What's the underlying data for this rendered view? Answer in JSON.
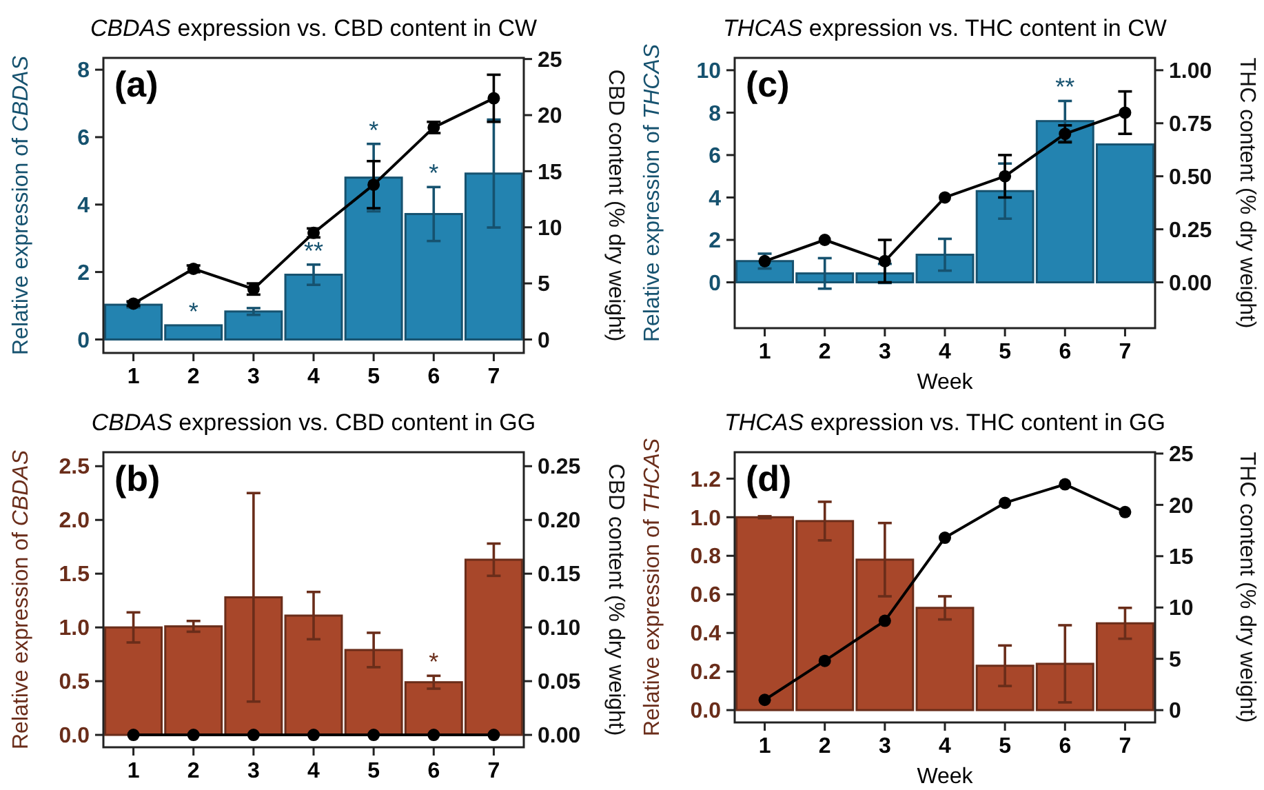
{
  "chart_data": [
    {
      "type": "bar",
      "title": "CBDAS expression vs. CBD content in CW",
      "ylabel": "Relative expression of CBDAS",
      "y2label": "CBD content (% dry weight)",
      "categories": [
        "1",
        "2",
        "3",
        "4",
        "5",
        "6",
        "7"
      ],
      "series": [
        {
          "color": "#2383b0",
          "values": [
            1.03,
            0.42,
            0.83,
            1.92,
            4.8,
            3.72,
            4.92
          ],
          "errors": [
            0.08,
            null,
            0.1,
            0.3,
            1.0,
            0.8,
            1.6
          ],
          "value_labels": [
            null,
            "*",
            null,
            "**",
            "*",
            "*",
            null
          ]
        },
        {
          "type": "line",
          "axis": "y2",
          "color": "#000000",
          "marker": "circle",
          "values": [
            3.2,
            6.3,
            4.5,
            9.5,
            13.8,
            18.9,
            21.5
          ],
          "errors": [
            0.2,
            0.3,
            0.5,
            0.4,
            2.1,
            0.5,
            2.1
          ]
        }
      ],
      "ylim": [
        -0.4,
        8.35
      ],
      "yticks": [
        0,
        2,
        4,
        6,
        8
      ],
      "y2lim": [
        -1.2,
        25.1
      ],
      "y2ticks": [
        0,
        5,
        10,
        15,
        20,
        25
      ],
      "annotations": [
        "(a)"
      ]
    },
    {
      "type": "bar",
      "title": "THCAS expression vs. THC content in CW",
      "xlabel": "Week",
      "ylabel": "Relative expression of THCAS",
      "y2label": "THC content (% dry weight)",
      "categories": [
        "1",
        "2",
        "3",
        "4",
        "5",
        "6",
        "7"
      ],
      "series": [
        {
          "color": "#2383b0",
          "values": [
            1.0,
            0.42,
            0.42,
            1.3,
            4.3,
            7.6,
            6.5
          ],
          "errors": [
            0.35,
            0.72,
            0.45,
            0.75,
            1.3,
            0.95,
            null
          ],
          "value_labels": [
            null,
            null,
            null,
            null,
            null,
            "**",
            null
          ]
        },
        {
          "type": "line",
          "axis": "y2",
          "color": "#000000",
          "marker": "circle",
          "values": [
            0.1,
            0.2,
            0.1,
            0.4,
            0.5,
            0.7,
            0.8
          ],
          "errors": [
            null,
            null,
            0.1,
            null,
            0.1,
            0.04,
            0.1
          ]
        }
      ],
      "ylim": [
        -2.16,
        10.58
      ],
      "yticks": [
        0,
        2,
        4,
        6,
        8,
        10
      ],
      "y2lim": [
        -0.216,
        1.058
      ],
      "y2ticks": [
        {
          "value": 0,
          "label": "0.00"
        },
        {
          "value": 0.25,
          "label": "0.25"
        },
        {
          "value": 0.5,
          "label": "0.50"
        },
        {
          "value": 0.75,
          "label": "0.75"
        },
        {
          "value": 1,
          "label": "1.00"
        }
      ],
      "annotations": [
        "(c)"
      ]
    },
    {
      "type": "bar",
      "title": "CBDAS expression vs. CBD content in GG",
      "ylabel": "Relative expression of CBDAS",
      "y2label": "CBD content (% dry weight)",
      "categories": [
        "1",
        "2",
        "3",
        "4",
        "5",
        "6",
        "7"
      ],
      "series": [
        {
          "color": "#a8472a",
          "values": [
            1.0,
            1.01,
            1.28,
            1.11,
            0.79,
            0.49,
            1.63
          ],
          "errors": [
            0.14,
            0.05,
            0.97,
            0.22,
            0.16,
            0.06,
            0.15
          ],
          "value_labels": [
            null,
            null,
            null,
            null,
            null,
            "*",
            null
          ]
        },
        {
          "type": "line",
          "axis": "y2",
          "color": "#000000",
          "marker": "circle",
          "values": [
            0,
            0,
            0,
            0,
            0,
            0,
            0
          ]
        }
      ],
      "ylim": [
        -0.115,
        2.63
      ],
      "yticks": [
        {
          "value": 0,
          "label": "0.0"
        },
        {
          "value": 0.5,
          "label": "0.5"
        },
        {
          "value": 1,
          "label": "1.0"
        },
        {
          "value": 1.5,
          "label": "1.5"
        },
        {
          "value": 2,
          "label": "2.0"
        },
        {
          "value": 2.5,
          "label": "2.5"
        }
      ],
      "y2lim": [
        -0.0115,
        0.263
      ],
      "y2ticks": [
        {
          "value": 0,
          "label": "0.00"
        },
        {
          "value": 0.05,
          "label": "0.05"
        },
        {
          "value": 0.1,
          "label": "0.10"
        },
        {
          "value": 0.15,
          "label": "0.15"
        },
        {
          "value": 0.2,
          "label": "0.20"
        },
        {
          "value": 0.25,
          "label": "0.25"
        }
      ],
      "annotations": [
        "(b)"
      ]
    },
    {
      "type": "bar",
      "title": "THCAS expression vs. THC content in GG",
      "xlabel": "Week",
      "ylabel": "Relative expression of THCAS",
      "y2label": "THC content (% dry weight)",
      "categories": [
        "1",
        "2",
        "3",
        "4",
        "5",
        "6",
        "7"
      ],
      "series": [
        {
          "color": "#a8472a",
          "values": [
            1.0,
            0.98,
            0.78,
            0.53,
            0.23,
            0.24,
            0.45
          ],
          "errors": [
            0.005,
            0.1,
            0.19,
            0.06,
            0.105,
            0.2,
            0.08
          ]
        },
        {
          "type": "line",
          "axis": "y2",
          "color": "#000000",
          "marker": "circle",
          "values": [
            1.0,
            4.8,
            8.7,
            16.8,
            20.2,
            22.0,
            19.3
          ]
        }
      ],
      "ylim": [
        -0.064,
        1.337
      ],
      "yticks": [
        {
          "value": 0,
          "label": "0.0"
        },
        {
          "value": 0.2,
          "label": "0.2"
        },
        {
          "value": 0.4,
          "label": "0.4"
        },
        {
          "value": 0.6,
          "label": "0.6"
        },
        {
          "value": 0.8,
          "label": "0.8"
        },
        {
          "value": 1,
          "label": "1.0"
        },
        {
          "value": 1.2,
          "label": "1.2"
        }
      ],
      "y2lim": [
        -1.2,
        25.13
      ],
      "y2ticks": [
        0,
        5,
        10,
        15,
        20,
        25
      ],
      "annotations": [
        "(d)"
      ]
    }
  ]
}
